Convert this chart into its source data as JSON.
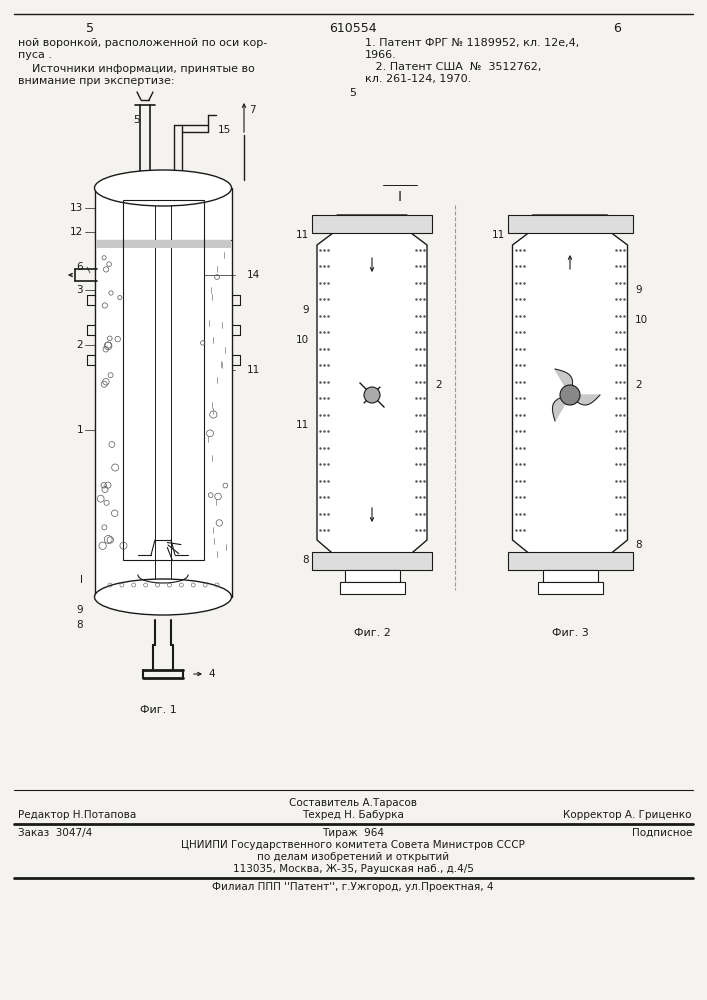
{
  "bg_color": "#f5f3ef",
  "page_number_center": "610554",
  "page_number_left": "5",
  "page_number_right": "6",
  "header_text_left1": "ной воронкой, расположенной по оси кор-",
  "header_text_left2": "пуса .",
  "header_text_left3": "    Источники информации, принятые во",
  "header_text_left4": "внимание при экспертизе:",
  "header_text_right1": "1. Патент ФРГ № 1189952, кл. 12е,4,",
  "header_text_right2": "1966.",
  "header_text_right3": "   2. Патент США  №  3512762,",
  "header_text_right4": "кл. 261-124, 1970.",
  "header_number_5": "5",
  "footer_line1_left": "Редактор Н.Потапова",
  "footer_line1_center_top": "Составитель А.Тарасов",
  "footer_line1_center": "Техред Н. Бабурка",
  "footer_line1_right": "Корректор А. Гриценко",
  "footer_line2_col1": "Заказ  3047/4",
  "footer_line2_col2": "Тираж  964",
  "footer_line2_col3": "Подписное",
  "footer_line3": "ЦНИИПИ Государственного комитета Совета Министров СССР",
  "footer_line4": "по делам изобретений и открытий",
  "footer_line5": "113035, Москва, Ж-35, Раушская наб., д.4/5",
  "footer_line6": "Филиал ППП ''Патент'', г.Ужгород, ул.Проектная, 4",
  "lc": "#1a1a1a",
  "fig_label_1": "Фиг. 1",
  "fig_label_2": "Фиг. 2",
  "fig_label_3": "Фиг. 3",
  "label_I": "I"
}
